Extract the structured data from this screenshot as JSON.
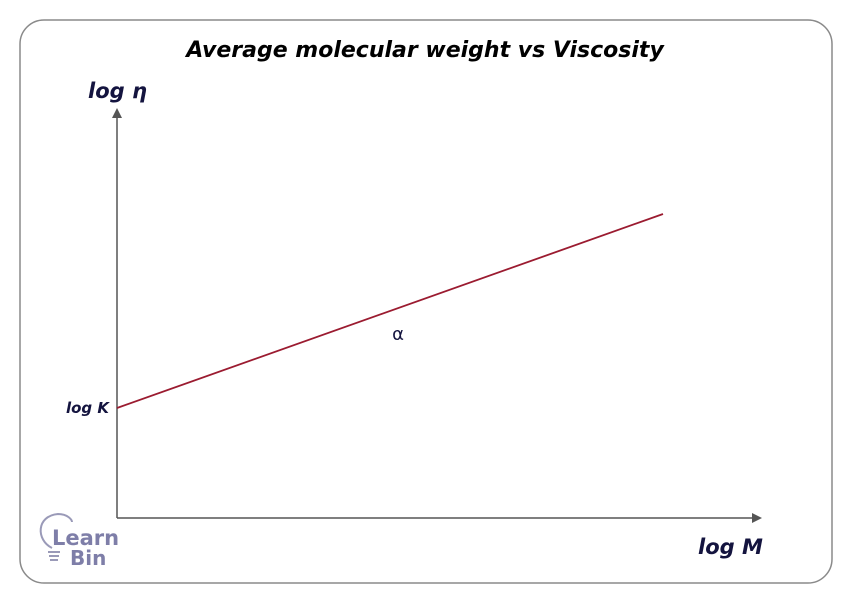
{
  "title": "Average molecular weight vs Viscosity",
  "y_axis_label": "log η",
  "x_axis_label": "log M",
  "intercept_label": "log K",
  "slope_label": "α",
  "logo": {
    "line1": "Learn",
    "line2": "Bin"
  },
  "colors": {
    "line": "#9b1b30",
    "text": "#14143f",
    "axis": "#555555",
    "logo": "#7e7ea8"
  }
}
